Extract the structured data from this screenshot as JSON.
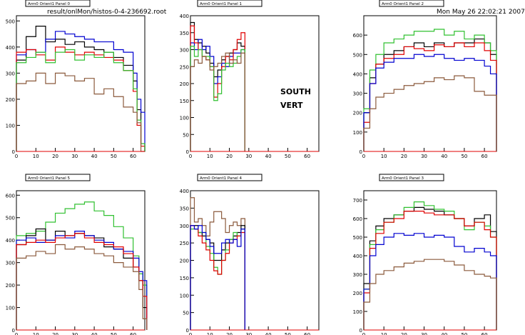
{
  "header": {
    "file": "result/onlMon/histos-0-4-236692.root",
    "date": "Mon May 26 22:02:21 2007"
  },
  "annotation": {
    "line1": "SOUTH",
    "line2": "VERT"
  },
  "colors": {
    "black": "#000000",
    "red": "#e00000",
    "blue": "#0000d0",
    "green": "#30c030",
    "brown": "#8b5a3c"
  },
  "chart_data": [
    {
      "type": "line",
      "title": "Arm0 Orient1 Panel 0",
      "xlim": [
        0,
        66
      ],
      "ylim": [
        0,
        520
      ],
      "xticks": [
        0,
        10,
        20,
        30,
        40,
        50,
        60
      ],
      "yticks": [
        0,
        100,
        200,
        300,
        400,
        500
      ],
      "x": [
        0,
        5,
        10,
        15,
        20,
        25,
        30,
        35,
        40,
        45,
        50,
        55,
        60,
        62,
        64
      ],
      "series": [
        {
          "color": "black",
          "values": [
            350,
            440,
            480,
            420,
            430,
            410,
            420,
            400,
            390,
            380,
            360,
            330,
            270,
            160,
            30
          ]
        },
        {
          "color": "blue",
          "values": [
            370,
            390,
            380,
            430,
            460,
            450,
            440,
            430,
            420,
            420,
            390,
            380,
            300,
            200,
            150
          ]
        },
        {
          "color": "red",
          "values": [
            380,
            390,
            370,
            350,
            400,
            380,
            370,
            380,
            370,
            360,
            350,
            310,
            230,
            100,
            20
          ]
        },
        {
          "color": "green",
          "values": [
            340,
            360,
            380,
            340,
            380,
            390,
            350,
            370,
            360,
            380,
            340,
            310,
            240,
            120,
            30
          ]
        },
        {
          "color": "brown",
          "values": [
            260,
            270,
            300,
            260,
            300,
            290,
            270,
            280,
            220,
            240,
            210,
            170,
            150,
            110,
            0
          ]
        }
      ]
    },
    {
      "type": "line",
      "title": "Arm0 Orient1 Panel 1",
      "xlim": [
        0,
        66
      ],
      "ylim": [
        0,
        400
      ],
      "xticks": [
        0,
        10,
        20,
        30,
        40,
        50,
        60
      ],
      "yticks": [
        0,
        50,
        100,
        150,
        200,
        250,
        300,
        350,
        400
      ],
      "x": [
        0,
        2,
        4,
        6,
        8,
        10,
        12,
        14,
        16,
        18,
        20,
        22,
        24,
        26
      ],
      "series": [
        {
          "color": "black",
          "values": [
            380,
            330,
            320,
            310,
            290,
            260,
            220,
            240,
            270,
            280,
            290,
            300,
            320,
            310
          ]
        },
        {
          "color": "blue",
          "values": [
            320,
            300,
            330,
            300,
            310,
            280,
            200,
            220,
            260,
            250,
            280,
            290,
            290,
            300
          ]
        },
        {
          "color": "red",
          "values": [
            370,
            320,
            300,
            280,
            270,
            250,
            160,
            200,
            250,
            280,
            270,
            300,
            330,
            350
          ]
        },
        {
          "color": "green",
          "values": [
            310,
            280,
            300,
            280,
            280,
            250,
            150,
            170,
            240,
            260,
            250,
            260,
            280,
            300
          ]
        },
        {
          "color": "brown",
          "values": [
            250,
            270,
            260,
            280,
            270,
            240,
            250,
            260,
            280,
            290,
            260,
            270,
            260,
            290
          ]
        }
      ]
    },
    {
      "type": "line",
      "title": "Arm0 Orient1 Panel 2",
      "xlim": [
        0,
        66
      ],
      "ylim": [
        0,
        700
      ],
      "xticks": [
        0,
        10,
        20,
        30,
        40,
        50,
        60
      ],
      "yticks": [
        0,
        100,
        200,
        300,
        400,
        500,
        600
      ],
      "x": [
        0,
        3,
        6,
        10,
        15,
        20,
        25,
        30,
        35,
        40,
        45,
        50,
        55,
        60,
        63
      ],
      "series": [
        {
          "color": "black",
          "values": [
            200,
            380,
            450,
            500,
            520,
            540,
            560,
            540,
            560,
            540,
            560,
            560,
            580,
            560,
            500
          ]
        },
        {
          "color": "green",
          "values": [
            220,
            420,
            500,
            560,
            580,
            600,
            620,
            620,
            630,
            600,
            620,
            580,
            600,
            560,
            520
          ]
        },
        {
          "color": "red",
          "values": [
            150,
            350,
            450,
            480,
            500,
            540,
            530,
            520,
            550,
            540,
            560,
            540,
            560,
            520,
            470
          ]
        },
        {
          "color": "blue",
          "values": [
            200,
            350,
            430,
            460,
            480,
            480,
            500,
            490,
            500,
            480,
            470,
            480,
            470,
            440,
            400
          ]
        },
        {
          "color": "brown",
          "values": [
            120,
            220,
            280,
            300,
            320,
            340,
            350,
            360,
            380,
            370,
            390,
            380,
            310,
            290,
            290
          ]
        }
      ]
    },
    {
      "type": "line",
      "title": "Arm0 Orient1 Panel 5",
      "xlim": [
        0,
        66
      ],
      "ylim": [
        0,
        620
      ],
      "xticks": [
        0,
        10,
        20,
        30,
        40,
        50,
        60
      ],
      "yticks": [
        0,
        100,
        200,
        300,
        400,
        500,
        600
      ],
      "x": [
        0,
        5,
        10,
        15,
        20,
        25,
        30,
        35,
        40,
        45,
        50,
        55,
        60,
        63,
        65
      ],
      "series": [
        {
          "color": "green",
          "values": [
            420,
            430,
            440,
            480,
            520,
            540,
            560,
            570,
            530,
            510,
            460,
            410,
            330,
            250,
            200
          ]
        },
        {
          "color": "black",
          "values": [
            380,
            420,
            450,
            400,
            440,
            420,
            430,
            420,
            410,
            370,
            360,
            320,
            280,
            220,
            100
          ]
        },
        {
          "color": "blue",
          "values": [
            400,
            410,
            390,
            400,
            420,
            410,
            440,
            420,
            400,
            390,
            360,
            350,
            320,
            260,
            220
          ]
        },
        {
          "color": "red",
          "values": [
            380,
            390,
            400,
            390,
            410,
            420,
            430,
            410,
            390,
            380,
            370,
            340,
            280,
            220,
            150
          ]
        },
        {
          "color": "brown",
          "values": [
            320,
            330,
            350,
            340,
            380,
            360,
            370,
            360,
            340,
            330,
            300,
            280,
            260,
            180,
            50
          ]
        }
      ]
    },
    {
      "type": "line",
      "title": "Arm0 Orient1 Panel 4",
      "xlim": [
        0,
        66
      ],
      "ylim": [
        0,
        400
      ],
      "xticks": [
        0,
        10,
        20,
        30,
        40,
        50,
        60
      ],
      "yticks": [
        0,
        50,
        100,
        150,
        200,
        250,
        300,
        350,
        400
      ],
      "x": [
        0,
        2,
        4,
        6,
        8,
        10,
        12,
        14,
        16,
        18,
        20,
        22,
        24,
        26
      ],
      "series": [
        {
          "color": "brown",
          "values": [
            380,
            310,
            320,
            300,
            270,
            310,
            340,
            340,
            320,
            280,
            300,
            310,
            300,
            320
          ]
        },
        {
          "color": "black",
          "values": [
            300,
            300,
            280,
            270,
            260,
            250,
            200,
            200,
            230,
            250,
            260,
            270,
            280,
            300
          ]
        },
        {
          "color": "green",
          "values": [
            290,
            290,
            280,
            280,
            240,
            220,
            180,
            160,
            200,
            230,
            260,
            280,
            270,
            290
          ]
        },
        {
          "color": "red",
          "values": [
            300,
            290,
            270,
            250,
            230,
            200,
            170,
            160,
            200,
            220,
            250,
            260,
            270,
            280
          ]
        },
        {
          "color": "blue",
          "values": [
            300,
            290,
            300,
            280,
            260,
            240,
            220,
            220,
            250,
            260,
            250,
            260,
            240,
            290
          ]
        }
      ]
    },
    {
      "type": "line",
      "title": "Arm0 Orient1 Panel 3",
      "xlim": [
        0,
        66
      ],
      "ylim": [
        0,
        750
      ],
      "xticks": [
        0,
        10,
        20,
        30,
        40,
        50,
        60
      ],
      "yticks": [
        0,
        100,
        200,
        300,
        400,
        500,
        600,
        700
      ],
      "x": [
        0,
        3,
        6,
        10,
        15,
        20,
        25,
        30,
        35,
        40,
        45,
        50,
        55,
        60,
        63
      ],
      "series": [
        {
          "color": "black",
          "values": [
            250,
            480,
            560,
            600,
            620,
            640,
            660,
            650,
            640,
            620,
            600,
            560,
            600,
            620,
            530
          ]
        },
        {
          "color": "green",
          "values": [
            220,
            460,
            540,
            580,
            620,
            660,
            690,
            670,
            650,
            640,
            600,
            540,
            580,
            560,
            500
          ]
        },
        {
          "color": "red",
          "values": [
            200,
            440,
            520,
            580,
            600,
            640,
            640,
            630,
            620,
            620,
            600,
            560,
            580,
            540,
            500
          ]
        },
        {
          "color": "blue",
          "values": [
            220,
            400,
            460,
            500,
            520,
            510,
            520,
            500,
            510,
            500,
            450,
            420,
            440,
            420,
            400
          ]
        },
        {
          "color": "brown",
          "values": [
            150,
            250,
            300,
            320,
            340,
            360,
            370,
            380,
            380,
            370,
            350,
            320,
            300,
            290,
            280
          ]
        }
      ]
    }
  ]
}
